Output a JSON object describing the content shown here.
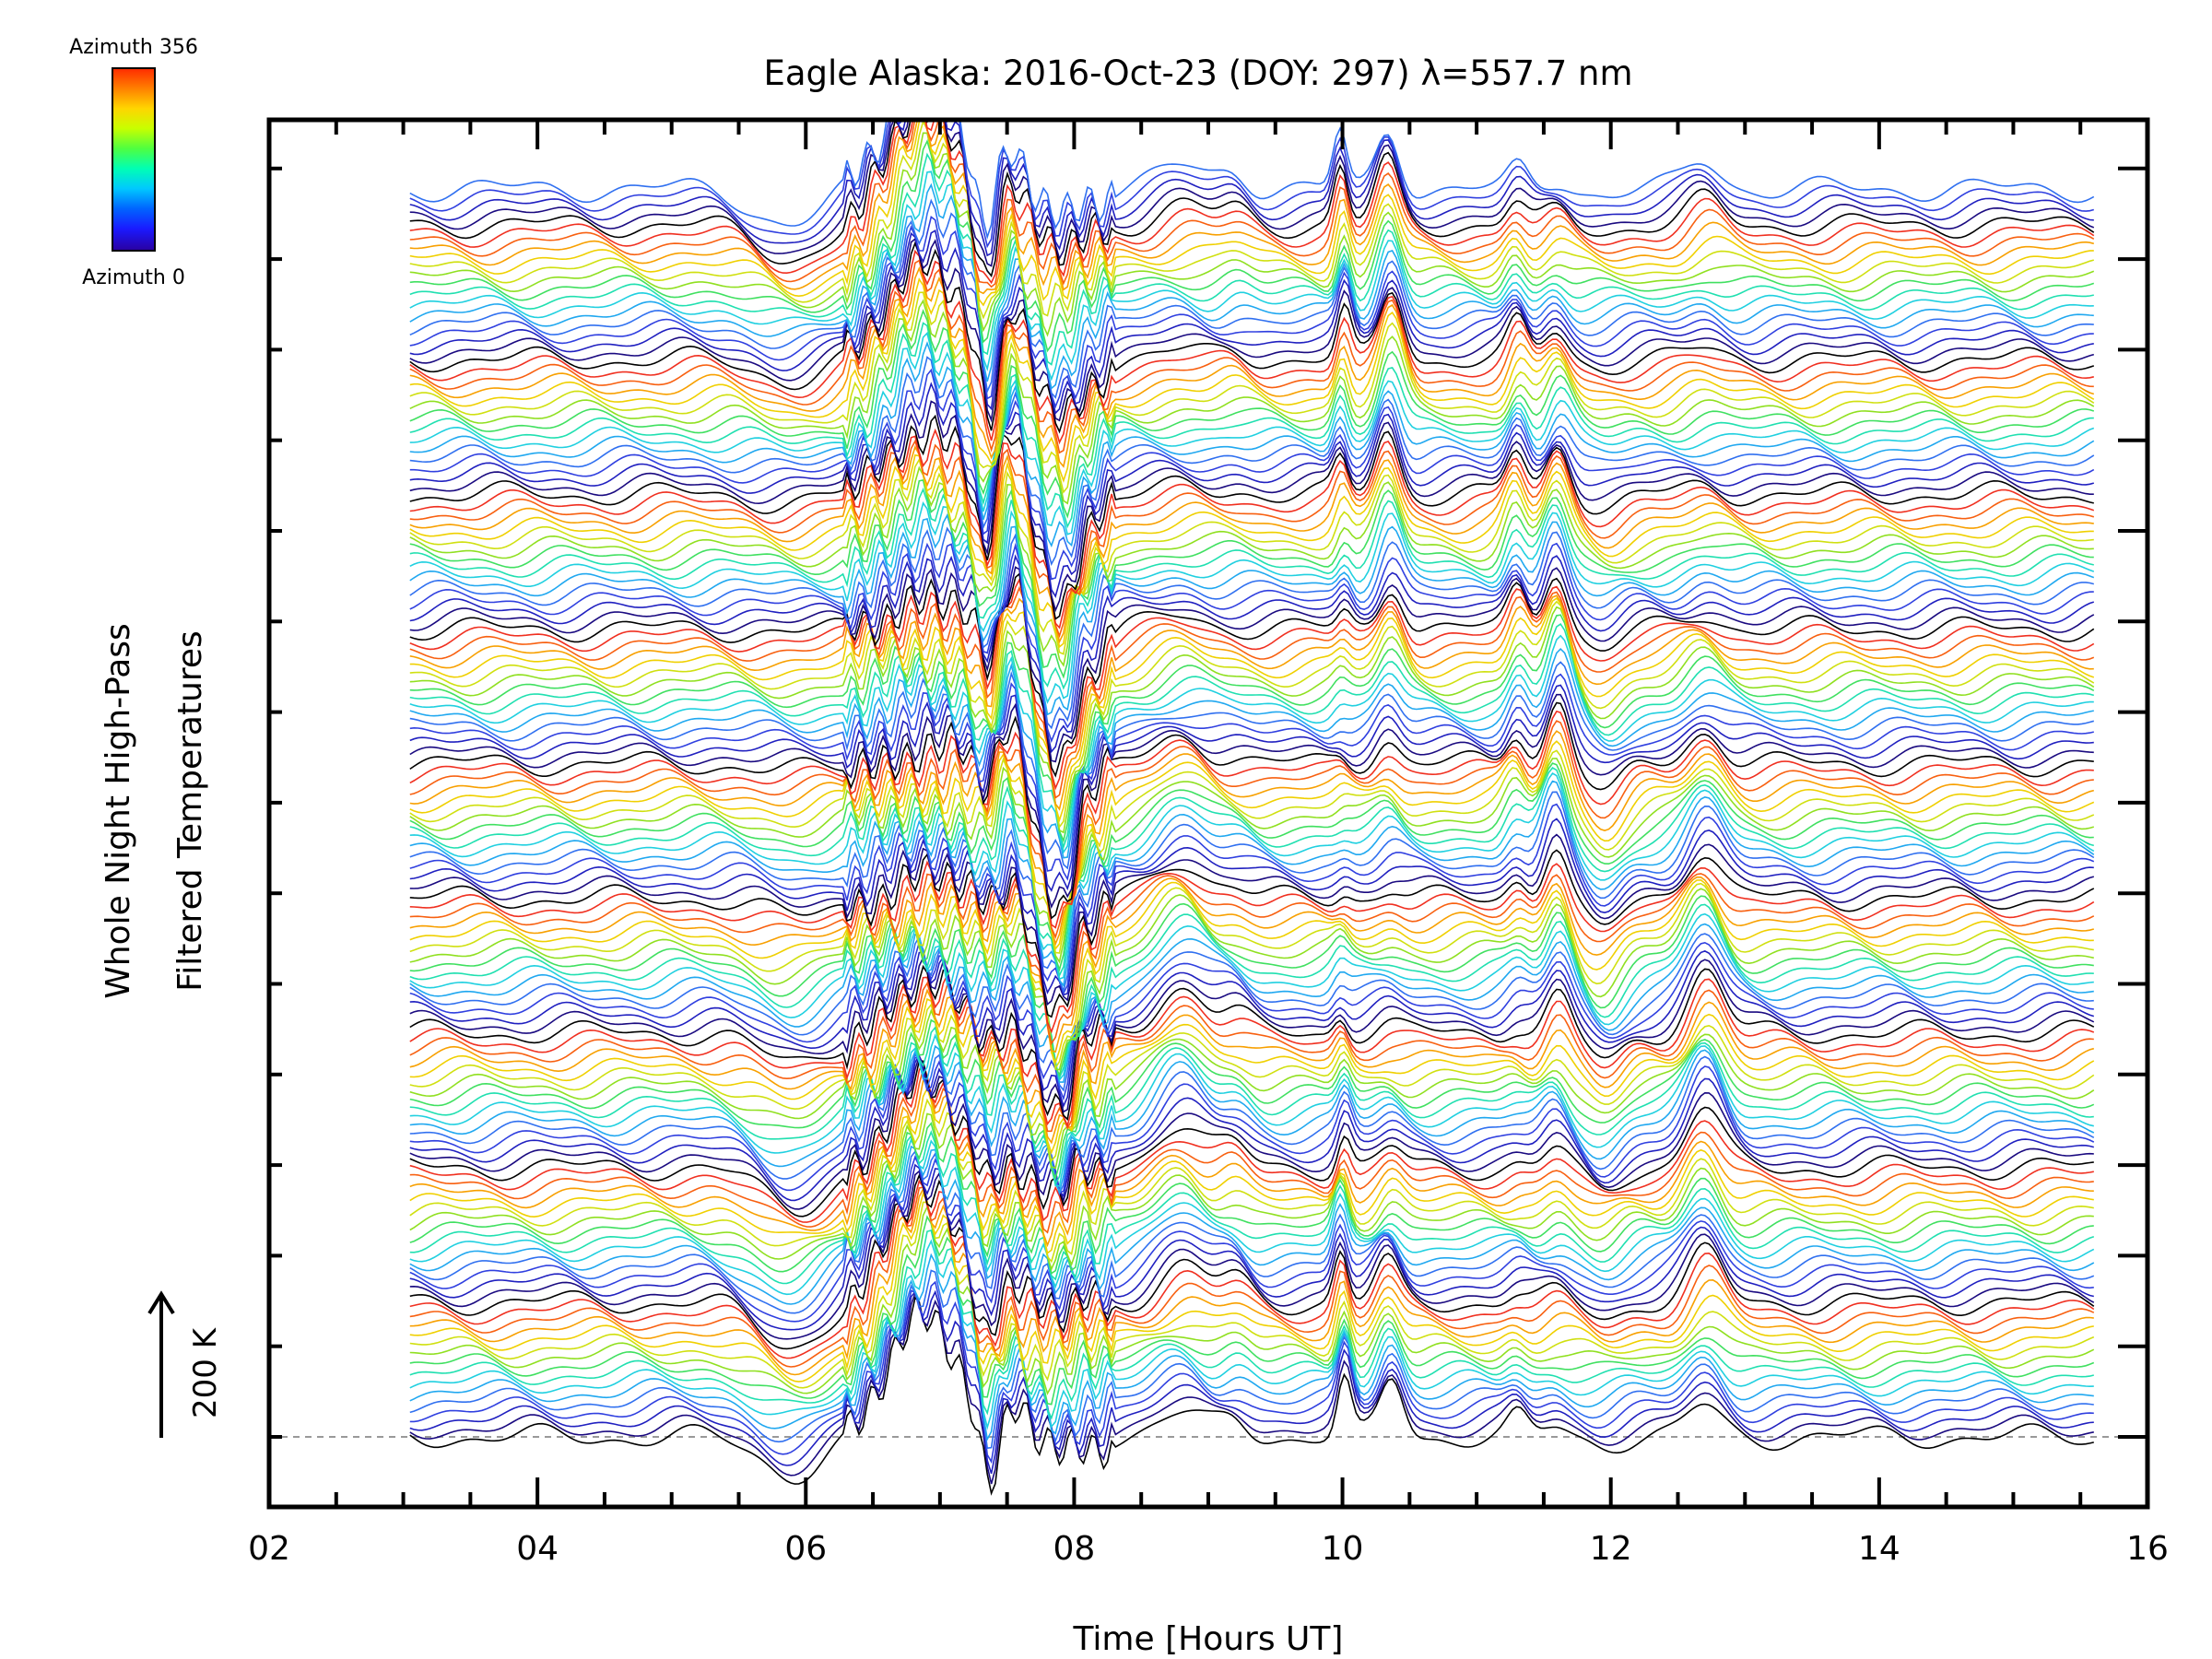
{
  "chart_data": {
    "type": "line",
    "title": "Eagle Alaska: 2016-Oct-23 (DOY: 297) λ=557.7 nm",
    "xlabel": "Time [Hours UT]",
    "ylabel_line1": "Whole Night High-Pass",
    "ylabel_line2": "Filtered Temperatures",
    "xlim": [
      2,
      16
    ],
    "x_ticks": [
      2,
      4,
      6,
      8,
      10,
      12,
      14,
      16
    ],
    "x_tick_labels": [
      "02",
      "04",
      "06",
      "08",
      "10",
      "12",
      "14",
      "16"
    ],
    "data_x_range": [
      3.05,
      15.6
    ],
    "scale_bar_label": "200 K",
    "colorbar": {
      "top_label": "Azimuth 356",
      "bottom_label": "Azimuth 0",
      "colors": [
        "#ff2a00",
        "#ff7f00",
        "#ffd500",
        "#c8ff00",
        "#4fff40",
        "#00ffb4",
        "#00c8ff",
        "#0064ff",
        "#1a1aff",
        "#2a00a0"
      ]
    },
    "series_count": 140,
    "series_color_cycle": [
      "#000000",
      "#1a0a80",
      "#2020c0",
      "#3040e0",
      "#3070f0",
      "#20a8f0",
      "#20d0e0",
      "#20e0b0",
      "#40e060",
      "#90e020",
      "#d0e010",
      "#f0d000",
      "#f8a000",
      "#f86010",
      "#f03020"
    ],
    "reference_line_style": "dashed-gray",
    "grid": false,
    "events": [
      {
        "time": 6.9,
        "amplitude": 180,
        "width": 0.35
      },
      {
        "time": 7.35,
        "amplitude": -120,
        "width": 0.1
      },
      {
        "time": 7.55,
        "amplitude": 90,
        "width": 0.12
      },
      {
        "time": 7.9,
        "amplitude": -200,
        "width": 0.22
      },
      {
        "time": 8.05,
        "amplitude": 50,
        "width": 0.08
      },
      {
        "time": 8.8,
        "amplitude": 70,
        "width": 0.25
      },
      {
        "time": 9.2,
        "amplitude": 30,
        "width": 0.15
      },
      {
        "time": 10.0,
        "amplitude": 80,
        "width": 0.07
      },
      {
        "time": 10.35,
        "amplitude": 100,
        "width": 0.12
      },
      {
        "time": 11.3,
        "amplitude": 60,
        "width": 0.1
      },
      {
        "time": 11.6,
        "amplitude": 95,
        "width": 0.12
      },
      {
        "time": 11.95,
        "amplitude": -50,
        "width": 0.18
      },
      {
        "time": 12.7,
        "amplitude": 90,
        "width": 0.18
      },
      {
        "time": 5.9,
        "amplitude": -60,
        "width": 0.35
      }
    ]
  }
}
